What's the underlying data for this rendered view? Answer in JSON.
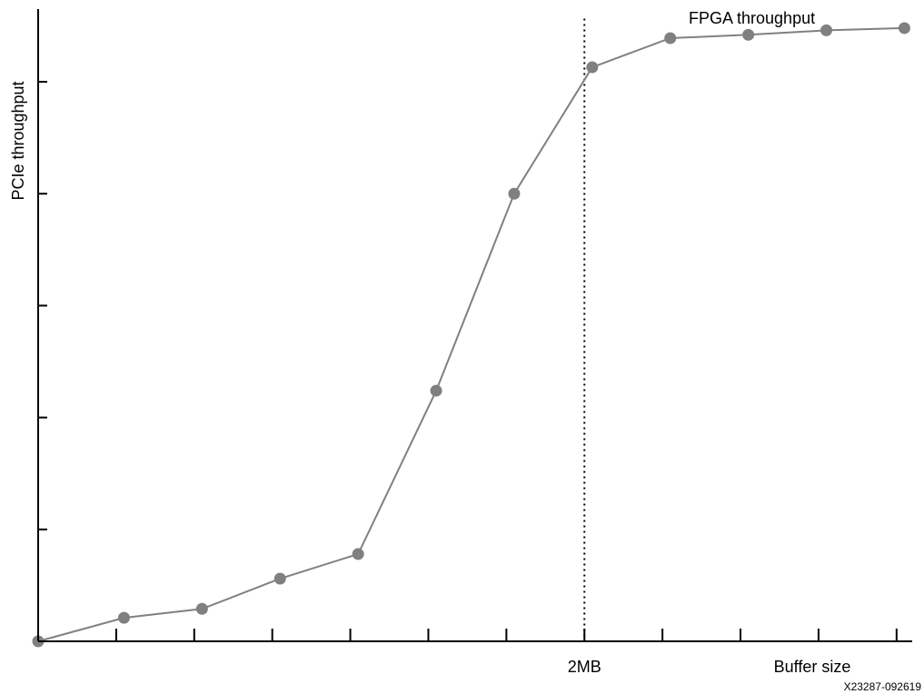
{
  "chart_data": {
    "type": "line",
    "title": "",
    "xlabel": "Buffer size",
    "ylabel": "PCIe throughput",
    "series_label": "FPGA throughput",
    "x_ticks": [
      0,
      1,
      2,
      3,
      4,
      5,
      6,
      7,
      8,
      9,
      10,
      11
    ],
    "x_tick_labels": [
      {
        "x": 7,
        "label": "2MB"
      }
    ],
    "y_ticks": [
      1,
      2,
      3,
      4,
      5
    ],
    "xlim": [
      0,
      11.2
    ],
    "ylim": [
      0,
      5.65
    ],
    "vertical_marker": {
      "x": 7,
      "label": "2MB"
    },
    "series": [
      {
        "color": "#808080",
        "x": [
          0,
          1.1,
          2.1,
          3.1,
          4.1,
          5.1,
          6.1,
          7.1,
          8.1,
          9.1,
          10.1,
          11.1
        ],
        "y": [
          0,
          0.21,
          0.29,
          0.56,
          0.78,
          2.24,
          4.0,
          5.13,
          5.39,
          5.42,
          5.46,
          5.48
        ]
      }
    ],
    "grid": false,
    "legend": "none"
  },
  "figure_id": "X23287-092619",
  "colors": {
    "series": "#808080",
    "axis": "#000000",
    "background": "#ffffff"
  }
}
